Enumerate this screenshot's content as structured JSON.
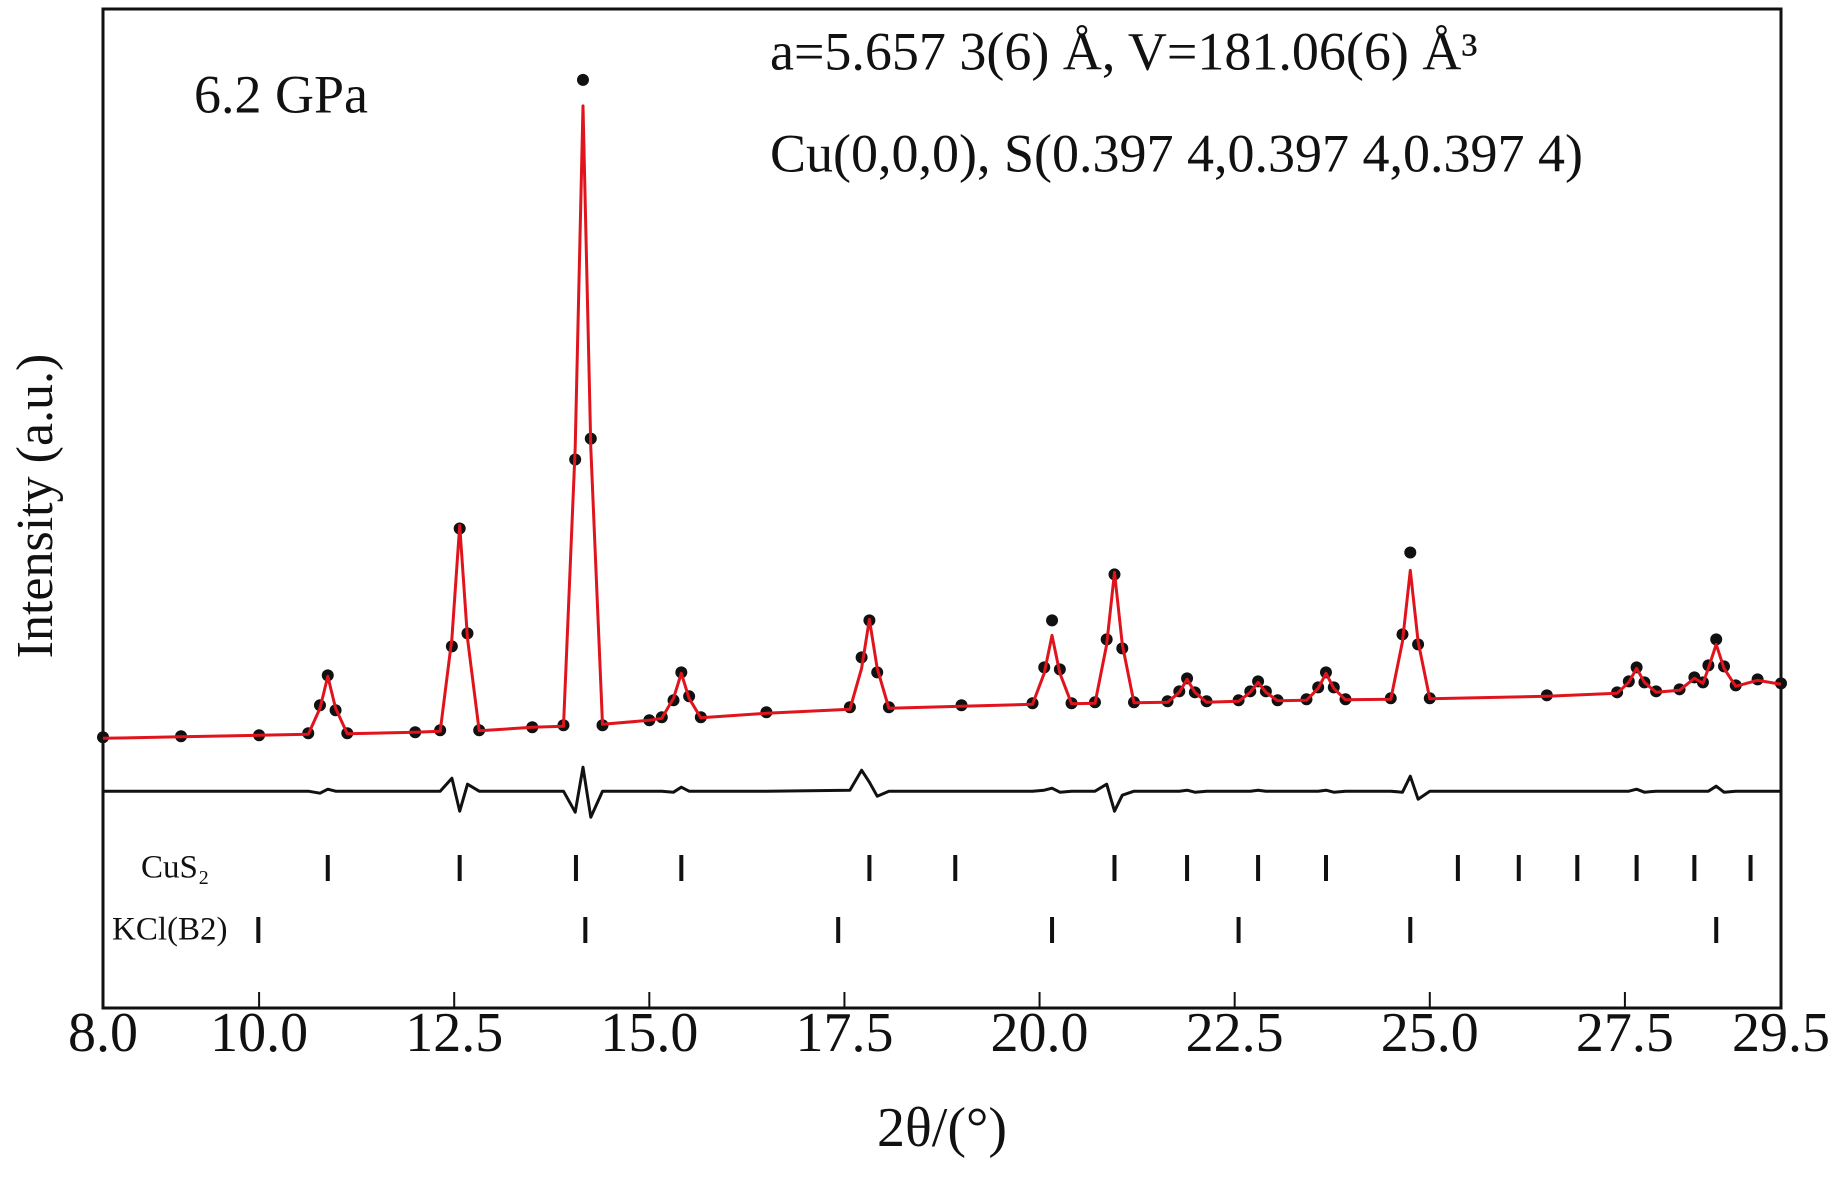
{
  "chart_data": {
    "type": "line",
    "xlabel": "2θ/(°)",
    "ylabel": "Intensity (a.u.)",
    "annotations": [
      "6.2 GPa",
      "a=5.657 3(6) Å, V=181.06(6) Å³",
      "Cu(0,0,0), S(0.397 4,0.397 4,0.397 4)"
    ],
    "xlim": [
      8.0,
      29.5
    ],
    "xticks": [
      {
        "value": 8,
        "label": "8.0"
      },
      {
        "value": 10,
        "label": "10.0"
      },
      12.5,
      {
        "value": 15,
        "label": "15.0"
      },
      17.5,
      {
        "value": 20,
        "label": "20.0"
      },
      22.5,
      {
        "value": 25,
        "label": "25.0"
      },
      27.5,
      29.5
    ],
    "ylim": [
      0,
      100
    ],
    "x": [
      8.0,
      9.0,
      10.0,
      10.63,
      10.78,
      10.88,
      10.98,
      11.13,
      12.0,
      12.32,
      12.47,
      12.57,
      12.67,
      12.82,
      13.5,
      13.9,
      14.05,
      14.15,
      14.25,
      14.4,
      15.0,
      15.16,
      15.31,
      15.41,
      15.51,
      15.66,
      16.5,
      17.57,
      17.72,
      17.82,
      17.92,
      18.07,
      19.0,
      19.91,
      20.06,
      20.16,
      20.26,
      20.41,
      20.71,
      20.86,
      20.96,
      21.06,
      21.21,
      21.64,
      21.79,
      21.89,
      21.99,
      22.14,
      22.55,
      22.7,
      22.8,
      22.9,
      23.05,
      23.42,
      23.57,
      23.67,
      23.77,
      23.92,
      24.5,
      24.65,
      24.75,
      24.85,
      25.0,
      26.5,
      27.4,
      27.55,
      27.65,
      27.75,
      27.9,
      28.2,
      28.39,
      28.5,
      28.57,
      28.67,
      28.77,
      28.92,
      29.2,
      29.5
    ],
    "series": [
      {
        "mode": "markers",
        "color": "#111111",
        "values": [
          27.1,
          27.2,
          27.3,
          27.5,
          30.3,
          33.3,
          29.8,
          27.5,
          27.6,
          27.8,
          36.2,
          48.0,
          37.5,
          27.8,
          28.1,
          28.3,
          54.9,
          92.9,
          57.0,
          28.3,
          28.8,
          29.1,
          30.8,
          33.6,
          31.2,
          29.1,
          29.6,
          30.1,
          35.1,
          38.8,
          33.6,
          30.1,
          30.3,
          30.5,
          34.1,
          38.8,
          33.9,
          30.5,
          30.6,
          36.9,
          43.4,
          36.0,
          30.6,
          30.7,
          31.7,
          33.0,
          31.6,
          30.7,
          30.8,
          31.7,
          32.7,
          31.7,
          30.8,
          30.9,
          32.1,
          33.6,
          32.1,
          30.9,
          31.0,
          37.4,
          45.6,
          36.4,
          31.0,
          31.3,
          31.6,
          32.7,
          34.1,
          32.6,
          31.7,
          31.9,
          33.1,
          32.6,
          34.3,
          36.9,
          34.2,
          32.3,
          32.9,
          32.5
        ]
      },
      {
        "mode": "line",
        "color": "#e0141c",
        "values": [
          27.0,
          27.15,
          27.3,
          27.4,
          30.0,
          33.2,
          30.0,
          27.45,
          27.6,
          27.7,
          37.0,
          48.3,
          37.0,
          27.75,
          28.1,
          28.2,
          56.1,
          90.3,
          56.1,
          28.4,
          28.8,
          29.0,
          31.0,
          33.5,
          31.0,
          29.05,
          29.5,
          29.9,
          34.0,
          38.9,
          34.0,
          30.0,
          30.2,
          30.4,
          33.5,
          37.3,
          33.5,
          30.45,
          30.5,
          36.4,
          43.6,
          36.4,
          30.55,
          30.6,
          31.6,
          32.9,
          31.6,
          30.6,
          30.7,
          31.6,
          32.6,
          31.6,
          30.75,
          30.8,
          32.0,
          33.5,
          32.0,
          30.85,
          30.9,
          36.7,
          43.8,
          36.7,
          30.95,
          31.2,
          31.5,
          32.6,
          34.0,
          32.6,
          31.6,
          31.8,
          33.0,
          32.5,
          34.0,
          36.4,
          34.0,
          32.2,
          32.8,
          32.4
        ]
      },
      {
        "mode": "line",
        "color": "#111111",
        "values": [
          21.7,
          21.7,
          21.7,
          21.7,
          21.5,
          21.9,
          21.7,
          21.7,
          21.7,
          21.7,
          23.0,
          19.7,
          22.4,
          21.7,
          21.7,
          21.7,
          19.6,
          24.1,
          19.1,
          21.7,
          21.7,
          21.7,
          21.6,
          22.1,
          21.7,
          21.7,
          21.7,
          21.8,
          23.8,
          22.6,
          21.2,
          21.7,
          21.7,
          21.7,
          21.8,
          22.0,
          21.6,
          21.7,
          21.7,
          22.4,
          19.7,
          21.3,
          21.7,
          21.7,
          21.7,
          21.8,
          21.6,
          21.7,
          21.7,
          21.7,
          21.8,
          21.7,
          21.7,
          21.7,
          21.7,
          21.8,
          21.6,
          21.7,
          21.7,
          21.6,
          23.2,
          20.9,
          21.7,
          21.7,
          21.7,
          21.7,
          21.9,
          21.6,
          21.7,
          21.7,
          21.7,
          21.7,
          21.7,
          22.2,
          21.6,
          21.7,
          21.7,
          21.7
        ]
      }
    ],
    "reflections": [
      {
        "name": "CuS₂",
        "positions": [
          10.88,
          12.57,
          14.06,
          15.41,
          17.82,
          18.92,
          20.96,
          21.89,
          22.8,
          23.67,
          25.36,
          26.14,
          26.89,
          27.65,
          28.39,
          29.11
        ]
      },
      {
        "name": "KCl(B2)",
        "positions": [
          9.99,
          14.18,
          17.42,
          20.16,
          22.55,
          24.75,
          28.67
        ]
      }
    ]
  }
}
